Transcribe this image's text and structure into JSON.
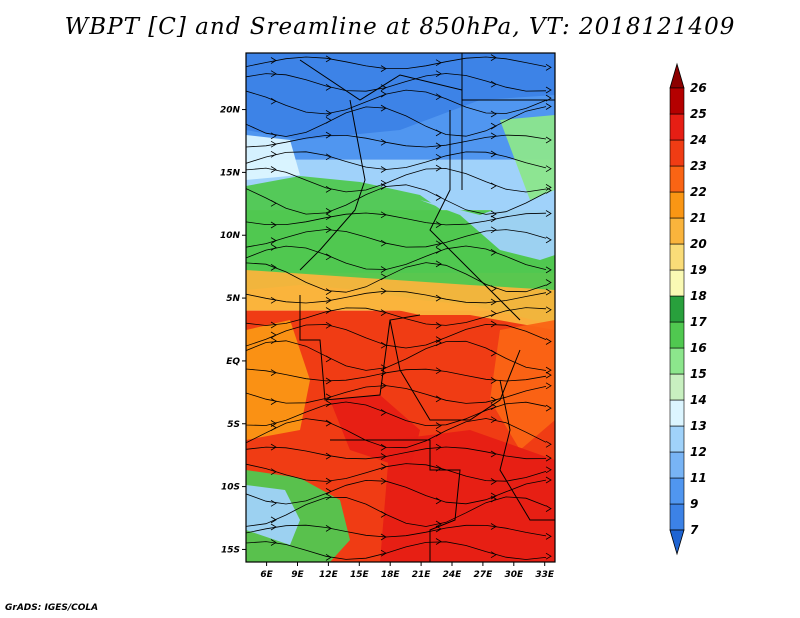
{
  "title": "WBPT [C] and Sreamline at 850hPa, VT: 2018121409",
  "credit": "GrADS: IGES/COLA",
  "map": {
    "lat_ticks": [
      "20N",
      "15N",
      "10N",
      "5N",
      "EQ",
      "5S",
      "10S",
      "15S"
    ],
    "lon_ticks": [
      "6E",
      "9E",
      "12E",
      "15E",
      "18E",
      "21E",
      "24E",
      "27E",
      "30E",
      "33E"
    ],
    "lat_range": [
      -16,
      24.5
    ],
    "lon_range": [
      4,
      34
    ]
  },
  "colorbar": {
    "labels": [
      "7",
      "9",
      "11",
      "12",
      "13",
      "14",
      "15",
      "16",
      "17",
      "18",
      "19",
      "20",
      "21",
      "22",
      "23",
      "24",
      "25",
      "26"
    ],
    "colors": [
      "#1e64d2",
      "#3c82e6",
      "#5096f0",
      "#78b4f5",
      "#a0d2fa",
      "#dcf5ff",
      "#c8f0c0",
      "#8ce68c",
      "#50c850",
      "#28a03c",
      "#fafab4",
      "#fadc78",
      "#fab43c",
      "#fa9614",
      "#fa6414",
      "#f03c14",
      "#e61e14",
      "#b40000",
      "#8c0000"
    ]
  },
  "field": {
    "bands": [
      {
        "lat_top": 24.5,
        "lat_bottom": 16,
        "color": "#5096f0"
      },
      {
        "lat_top": 16,
        "lat_bottom": 12,
        "color": "#a0d2fa"
      },
      {
        "lat_top": 12,
        "lat_bottom": 7,
        "color": "#50c850"
      },
      {
        "lat_top": 7,
        "lat_bottom": 4,
        "color": "#fab43c"
      },
      {
        "lat_top": 4,
        "lat_bottom": -16,
        "color": "#f03c14"
      }
    ]
  }
}
